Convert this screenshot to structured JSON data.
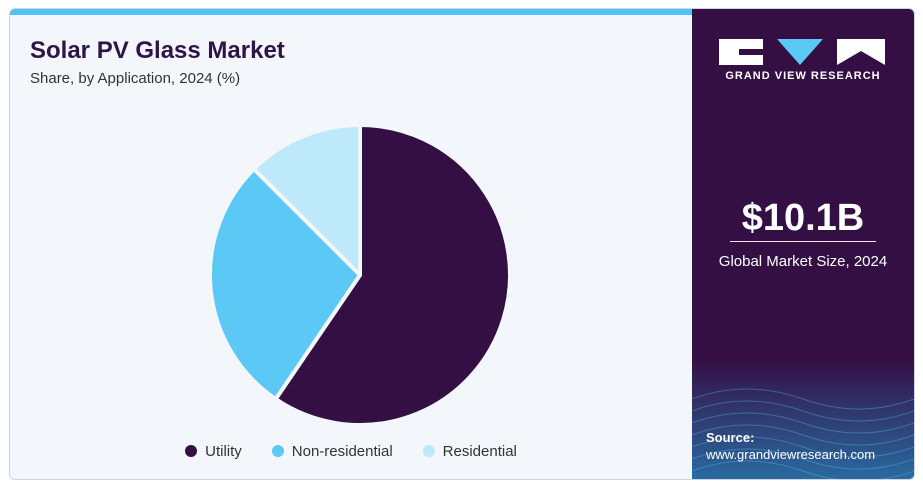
{
  "header": {
    "title": "Solar PV Glass Market",
    "subtitle": "Share, by Application, 2024 (%)"
  },
  "chart_data": {
    "type": "pie",
    "categories": [
      "Utility",
      "Non-residential",
      "Residential"
    ],
    "values": [
      59.5,
      28,
      12.5
    ],
    "colors": [
      "#340f44",
      "#5bc8f5",
      "#bde9fa"
    ],
    "legend_position": "bottom"
  },
  "sidebar": {
    "brand": "GRAND VIEW RESEARCH",
    "market_size": "$10.1B",
    "market_label": "Global Market Size, 2024",
    "source_label": "Source:",
    "source_url": "www.grandviewresearch.com"
  }
}
